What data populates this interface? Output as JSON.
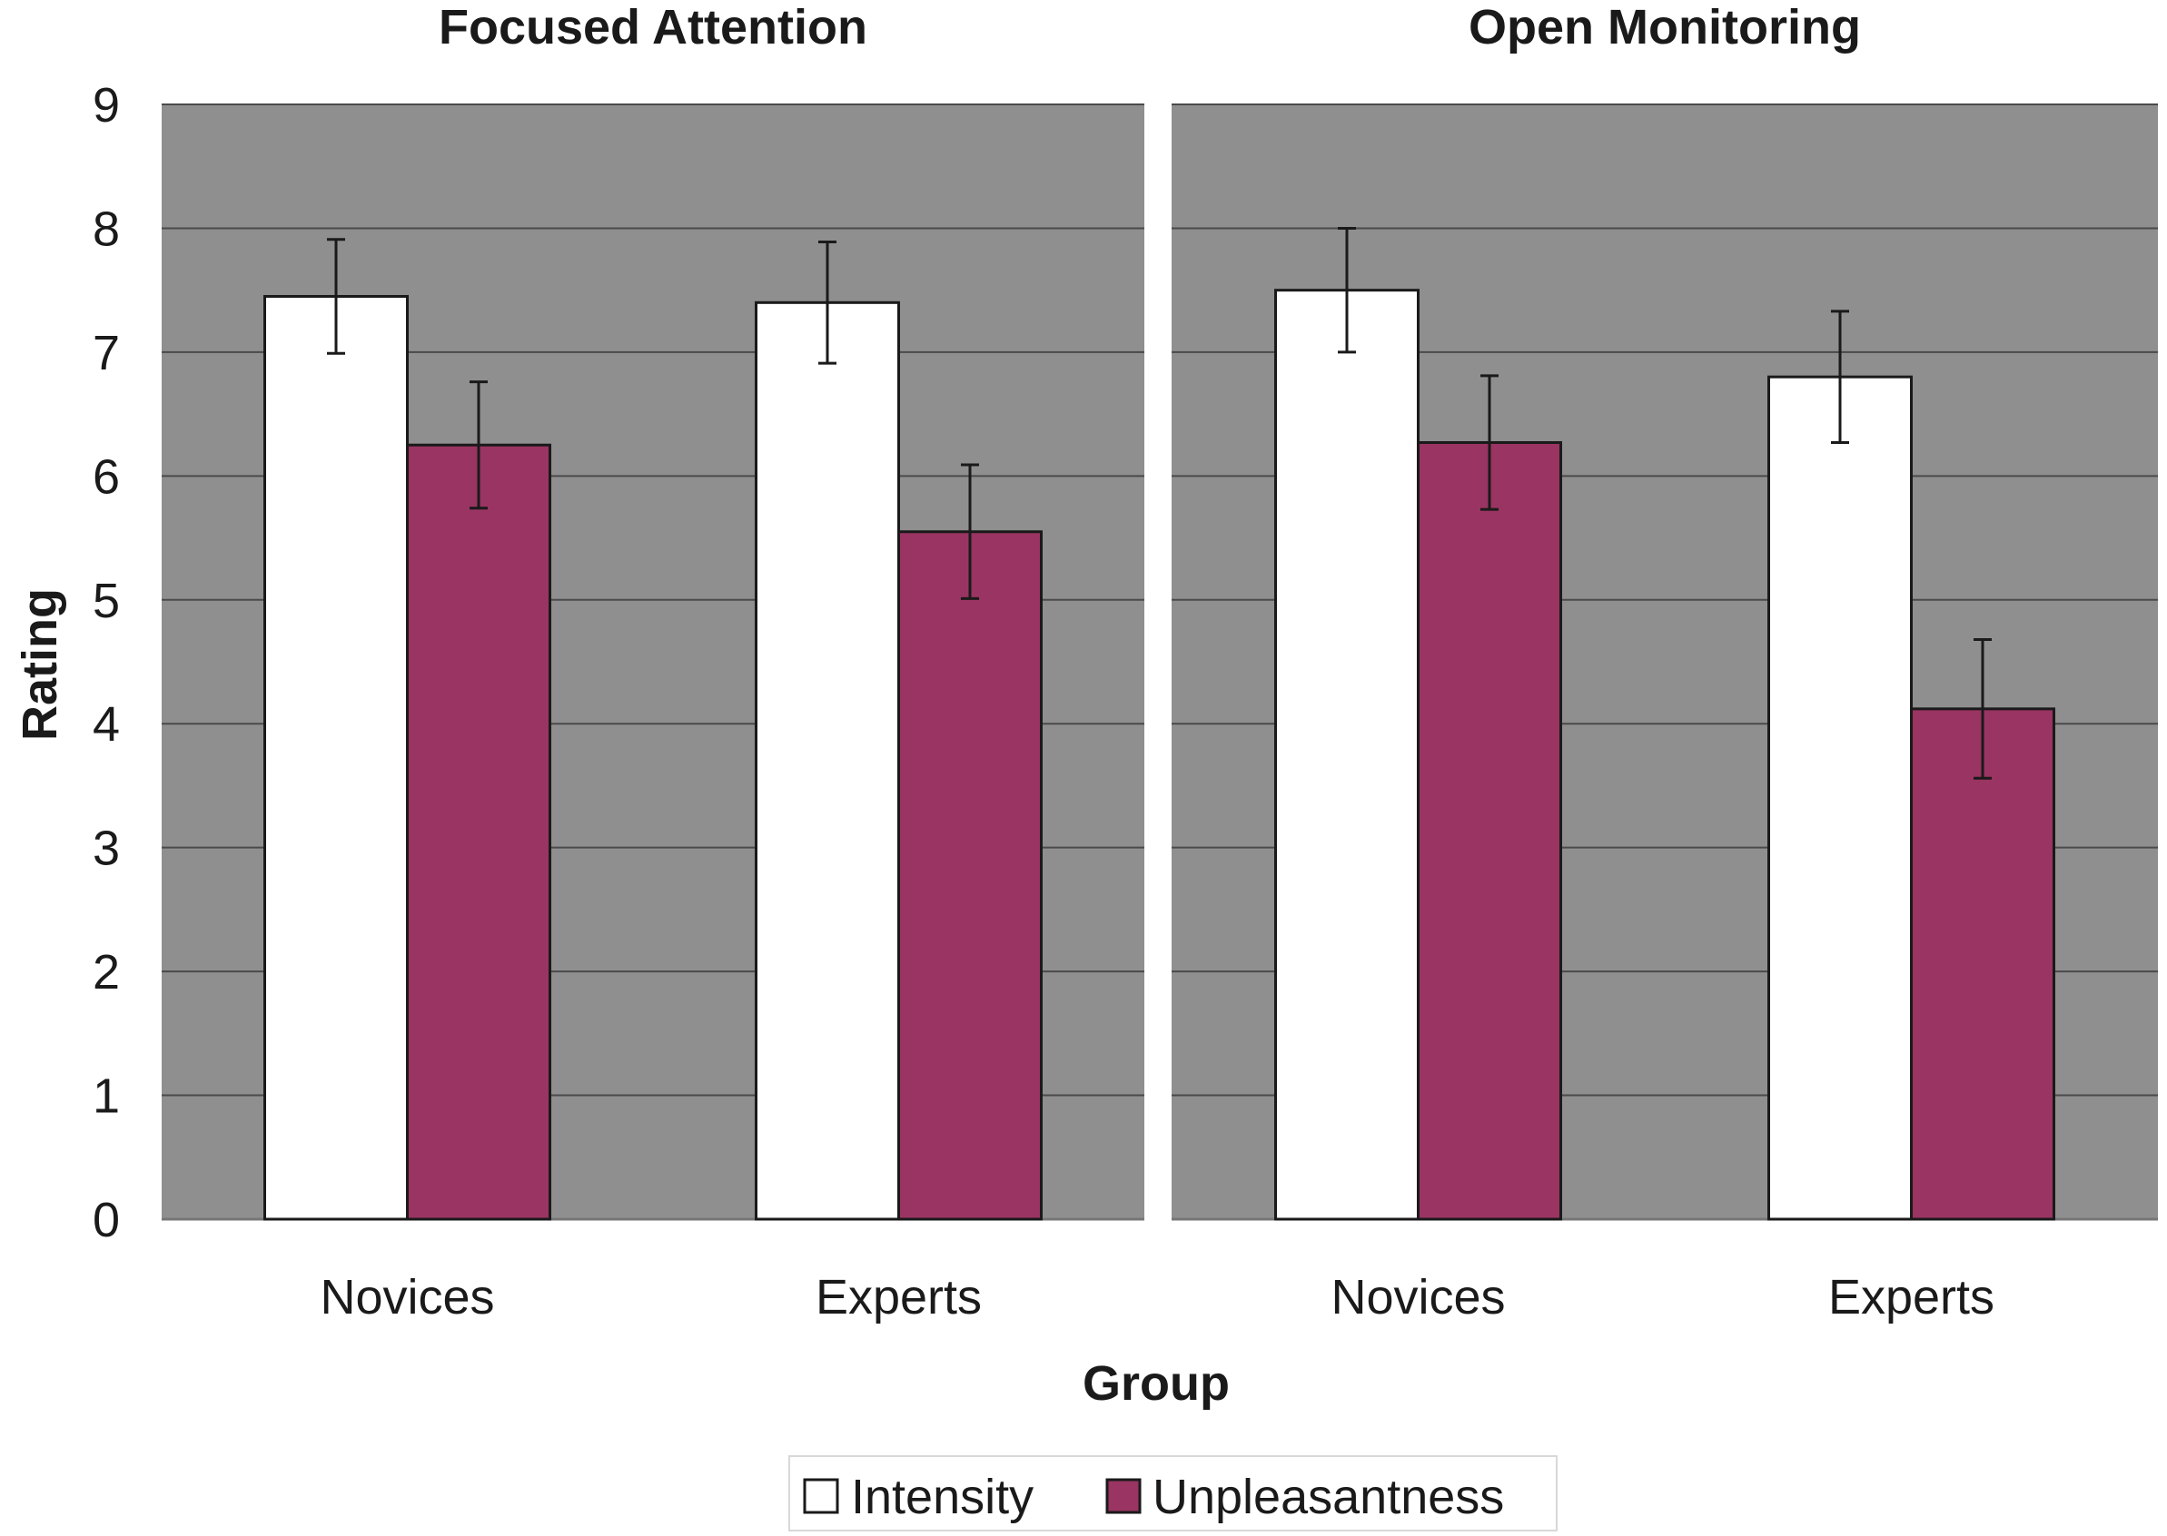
{
  "chart_data": {
    "type": "bar",
    "ylabel": "Rating",
    "xlabel": "Group",
    "ylim": [
      0,
      9
    ],
    "yticks": [
      "0",
      "1",
      "2",
      "3",
      "4",
      "5",
      "6",
      "7",
      "8",
      "9"
    ],
    "grid": true,
    "legend_position": "bottom",
    "colors": {
      "Intensity": "#ffffff",
      "Unpleasantness": "#9a3462",
      "plot_background": "#8f8f8f"
    },
    "panels": [
      {
        "title": "Focused Attention",
        "categories": [
          "Novices",
          "Experts"
        ],
        "series": [
          {
            "name": "Intensity",
            "values": [
              7.45,
              7.4
            ],
            "errors": [
              0.46,
              0.49
            ]
          },
          {
            "name": "Unpleasantness",
            "values": [
              6.25,
              5.55
            ],
            "errors": [
              0.51,
              0.54
            ]
          }
        ]
      },
      {
        "title": "Open Monitoring",
        "categories": [
          "Novices",
          "Experts"
        ],
        "series": [
          {
            "name": "Intensity",
            "values": [
              7.5,
              6.8
            ],
            "errors": [
              0.5,
              0.53
            ]
          },
          {
            "name": "Unpleasantness",
            "values": [
              6.27,
              4.12
            ],
            "errors": [
              0.54,
              0.56
            ]
          }
        ]
      }
    ]
  },
  "legend": {
    "items": [
      "Intensity",
      "Unpleasantness"
    ]
  }
}
